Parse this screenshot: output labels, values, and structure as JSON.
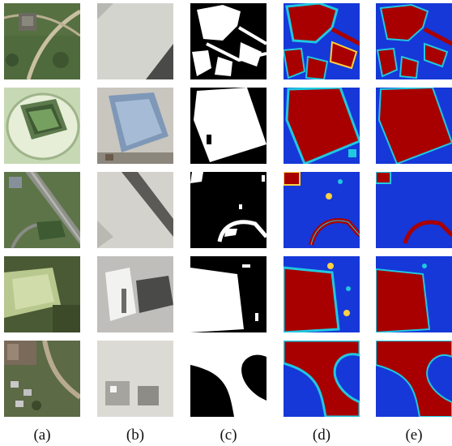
{
  "figure": {
    "columns": [
      {
        "label": "(a)"
      },
      {
        "label": "(b)"
      },
      {
        "label": "(c)"
      },
      {
        "label": "(d)"
      },
      {
        "label": "(e)"
      }
    ],
    "colors": {
      "mask_foreground": "#ffffff",
      "mask_background": "#000000",
      "heat_high": "#a80000",
      "heat_low": "#1030d8",
      "heat_mid": "#20c8e0"
    }
  }
}
